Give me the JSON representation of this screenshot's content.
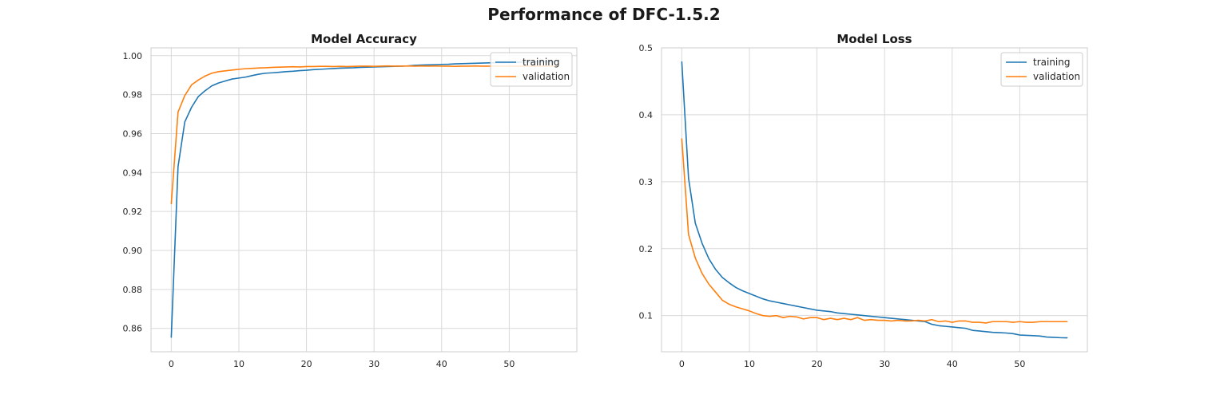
{
  "figure": {
    "suptitle": "Performance of DFC-1.5.2"
  },
  "chart_data": [
    {
      "type": "line",
      "title": "Model Accuracy",
      "xlabel": "",
      "ylabel": "",
      "xlim": [
        -3,
        60
      ],
      "ylim": [
        0.848,
        1.004
      ],
      "xticks": [
        0,
        10,
        20,
        30,
        40,
        50
      ],
      "xtick_labels": [
        "0",
        "10",
        "20",
        "30",
        "40",
        "50"
      ],
      "yticks": [
        0.86,
        0.88,
        0.9,
        0.92,
        0.94,
        0.96,
        0.98,
        1.0
      ],
      "ytick_labels": [
        "0.86",
        "0.88",
        "0.90",
        "0.92",
        "0.94",
        "0.96",
        "0.98",
        "1.00"
      ],
      "grid": true,
      "legend": "upper right",
      "x": [
        0,
        1,
        2,
        3,
        4,
        5,
        6,
        7,
        8,
        9,
        10,
        11,
        12,
        13,
        14,
        15,
        16,
        17,
        18,
        19,
        20,
        21,
        22,
        23,
        24,
        25,
        26,
        27,
        28,
        29,
        30,
        31,
        32,
        33,
        34,
        35,
        36,
        37,
        38,
        39,
        40,
        41,
        42,
        43,
        44,
        45,
        46,
        47,
        48,
        49,
        50,
        51,
        52,
        53,
        54,
        55,
        56,
        57
      ],
      "series": [
        {
          "name": "training",
          "color": "#1f77b4",
          "values": [
            0.8555,
            0.943,
            0.966,
            0.9735,
            0.979,
            0.982,
            0.9845,
            0.986,
            0.987,
            0.988,
            0.9885,
            0.989,
            0.9898,
            0.9905,
            0.991,
            0.9912,
            0.9915,
            0.9918,
            0.992,
            0.9923,
            0.9925,
            0.9928,
            0.993,
            0.9932,
            0.9934,
            0.9936,
            0.9937,
            0.9938,
            0.994,
            0.9941,
            0.9942,
            0.9943,
            0.9944,
            0.9945,
            0.9946,
            0.9947,
            0.995,
            0.9952,
            0.9953,
            0.9954,
            0.9955,
            0.9956,
            0.9958,
            0.9959,
            0.996,
            0.9961,
            0.9962,
            0.9963,
            0.9964,
            0.9964,
            0.9965,
            0.9966,
            0.9967,
            0.9967,
            0.9968,
            0.9968,
            0.9969,
            0.9969
          ]
        },
        {
          "name": "validation",
          "color": "#ff7f0e",
          "values": [
            0.924,
            0.971,
            0.9795,
            0.985,
            0.9875,
            0.9895,
            0.991,
            0.9918,
            0.9922,
            0.9926,
            0.993,
            0.9933,
            0.9935,
            0.9937,
            0.9938,
            0.994,
            0.9941,
            0.9942,
            0.9943,
            0.9942,
            0.9944,
            0.9944,
            0.9945,
            0.9945,
            0.9944,
            0.9945,
            0.9944,
            0.9945,
            0.9946,
            0.9946,
            0.9945,
            0.9946,
            0.9947,
            0.9946,
            0.9946,
            0.9947,
            0.9946,
            0.9947,
            0.9946,
            0.9947,
            0.9946,
            0.9946,
            0.9945,
            0.9946,
            0.9946,
            0.9947,
            0.9946,
            0.9946,
            0.9947,
            0.9946,
            0.9946,
            0.9946,
            0.9946,
            0.9946,
            0.9946,
            0.9946,
            0.9946,
            0.9946
          ]
        }
      ]
    },
    {
      "type": "line",
      "title": "Model Loss",
      "xlabel": "",
      "ylabel": "",
      "xlim": [
        -3,
        60
      ],
      "ylim": [
        0.046,
        0.5
      ],
      "xticks": [
        0,
        10,
        20,
        30,
        40,
        50
      ],
      "xtick_labels": [
        "0",
        "10",
        "20",
        "30",
        "40",
        "50"
      ],
      "yticks": [
        0.1,
        0.2,
        0.3,
        0.4,
        0.5
      ],
      "ytick_labels": [
        "0.1",
        "0.2",
        "0.3",
        "0.4",
        "0.5"
      ],
      "grid": true,
      "legend": "upper right",
      "x": [
        0,
        1,
        2,
        3,
        4,
        5,
        6,
        7,
        8,
        9,
        10,
        11,
        12,
        13,
        14,
        15,
        16,
        17,
        18,
        19,
        20,
        21,
        22,
        23,
        24,
        25,
        26,
        27,
        28,
        29,
        30,
        31,
        32,
        33,
        34,
        35,
        36,
        37,
        38,
        39,
        40,
        41,
        42,
        43,
        44,
        45,
        46,
        47,
        48,
        49,
        50,
        51,
        52,
        53,
        54,
        55,
        56,
        57
      ],
      "series": [
        {
          "name": "training",
          "color": "#1f77b4",
          "values": [
            0.479,
            0.305,
            0.238,
            0.208,
            0.185,
            0.169,
            0.157,
            0.149,
            0.142,
            0.137,
            0.133,
            0.129,
            0.125,
            0.122,
            0.12,
            0.118,
            0.116,
            0.114,
            0.112,
            0.11,
            0.108,
            0.107,
            0.106,
            0.104,
            0.103,
            0.102,
            0.101,
            0.1,
            0.099,
            0.098,
            0.097,
            0.096,
            0.095,
            0.094,
            0.093,
            0.092,
            0.091,
            0.087,
            0.085,
            0.084,
            0.083,
            0.082,
            0.081,
            0.078,
            0.077,
            0.076,
            0.075,
            0.0745,
            0.074,
            0.073,
            0.071,
            0.0705,
            0.07,
            0.0695,
            0.068,
            0.0675,
            0.067,
            0.0668
          ]
        },
        {
          "name": "validation",
          "color": "#ff7f0e",
          "values": [
            0.364,
            0.221,
            0.186,
            0.163,
            0.147,
            0.135,
            0.123,
            0.117,
            0.113,
            0.11,
            0.107,
            0.103,
            0.1,
            0.099,
            0.1,
            0.097,
            0.099,
            0.098,
            0.095,
            0.097,
            0.097,
            0.094,
            0.096,
            0.094,
            0.096,
            0.094,
            0.097,
            0.093,
            0.094,
            0.093,
            0.093,
            0.092,
            0.093,
            0.092,
            0.092,
            0.093,
            0.092,
            0.094,
            0.091,
            0.092,
            0.09,
            0.092,
            0.092,
            0.09,
            0.09,
            0.089,
            0.091,
            0.091,
            0.091,
            0.09,
            0.091,
            0.09,
            0.09,
            0.091,
            0.091,
            0.091,
            0.091,
            0.091
          ]
        }
      ]
    }
  ]
}
